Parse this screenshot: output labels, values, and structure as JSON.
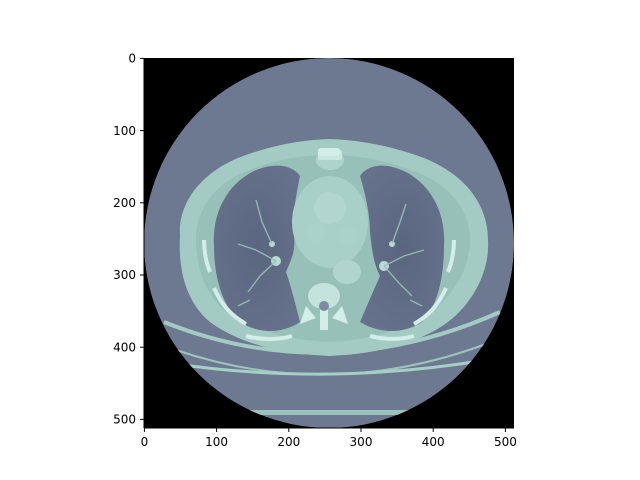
{
  "figure": {
    "x_ticks": [
      "0",
      "100",
      "200",
      "300",
      "400",
      "500"
    ],
    "y_ticks": [
      "0",
      "100",
      "200",
      "300",
      "400",
      "500"
    ],
    "x_tick_values": [
      0,
      100,
      200,
      300,
      400,
      500
    ],
    "y_tick_values": [
      0,
      100,
      200,
      300,
      400,
      500
    ],
    "x_range": [
      0,
      512
    ],
    "y_range": [
      0,
      512
    ],
    "image_content": "axial-chest-ct-slice",
    "colors": {
      "background_outside_fov": "#000000",
      "fov_soft_tissue": "#6d7891",
      "body_tissue": "#a3cbc4",
      "lung": "#5e6a86",
      "bone": "#d3ede8",
      "axes": "#000000"
    }
  }
}
